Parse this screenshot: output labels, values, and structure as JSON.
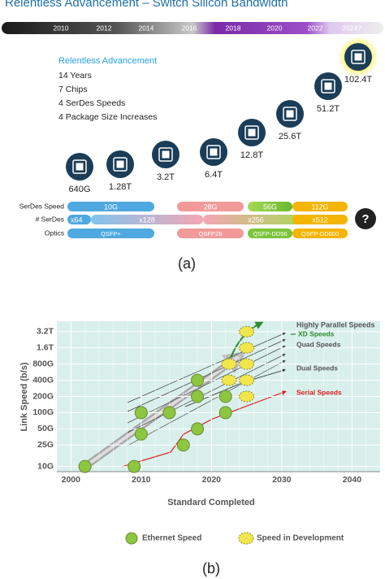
{
  "panel_a": {
    "title": "Relentless Advancement – Switch Silicon Bandwidth",
    "years": [
      "2010",
      "2012",
      "2014",
      "2016",
      "2018",
      "2020",
      "2022",
      "2024?"
    ],
    "info": {
      "heading": "Relentless Advancement",
      "lines": [
        "14 Years",
        "7 Chips",
        "4 SerDes Speeds",
        "4 Package Size Increases"
      ]
    },
    "chips": [
      "640G",
      "1.28T",
      "3.2T",
      "6.4T",
      "12.8T",
      "25.6T",
      "51.2T",
      "102.4T"
    ],
    "rows": [
      {
        "label": "SerDes Speed",
        "bars": [
          "10G",
          "28G",
          "56G",
          "112G"
        ]
      },
      {
        "label": "# SerDes",
        "bars": [
          "x64",
          "x128",
          "x256",
          "x512"
        ]
      },
      {
        "label": "Optics",
        "bars": [
          "QSFP+",
          "QSFP28",
          "QSFP-DD56",
          "QSFP-DD800"
        ]
      }
    ],
    "unknown": "?",
    "caption": "(a)"
  },
  "chart_data": {
    "type": "scatter",
    "y_label": "Link Speed (b/s)",
    "x_label": "Standard Completed",
    "xlim": [
      1998,
      2044
    ],
    "ylim": [
      8,
      5000
    ],
    "log_y": true,
    "grid": true,
    "xticks": [
      2000,
      2010,
      2020,
      2030,
      2040
    ],
    "yticks": [
      {
        "value": 10,
        "label": "10G"
      },
      {
        "value": 25,
        "label": "25G"
      },
      {
        "value": 50,
        "label": "50G"
      },
      {
        "value": 100,
        "label": "100G"
      },
      {
        "value": 200,
        "label": "200G"
      },
      {
        "value": 400,
        "label": "400G"
      },
      {
        "value": 800,
        "label": "800G"
      },
      {
        "value": 1600,
        "label": "1.6T"
      },
      {
        "value": 3200,
        "label": "3.2T"
      }
    ],
    "series": [
      {
        "name": "Ethernet Speed",
        "color": "#8dc63f",
        "x": [
          2002,
          2009,
          2010,
          2010,
          2014,
          2016,
          2018,
          2018,
          2018,
          2022,
          2022
        ],
        "values": [
          10,
          10,
          40,
          100,
          100,
          25,
          50,
          200,
          400,
          100,
          200
        ]
      },
      {
        "name": "Speed in Development",
        "color": "#f1e64b",
        "x": [
          2022.5,
          2025,
          2022.5,
          2025,
          2025,
          2025,
          2025
        ],
        "values": [
          800,
          800,
          400,
          400,
          200,
          1600,
          3200
        ]
      }
    ],
    "annotations": [
      {
        "text": "Highly Parallel Speeds",
        "color": "#555555"
      },
      {
        "text": "XD Speeds",
        "color": "#2e8b2e"
      },
      {
        "text": "Quad Speeds",
        "color": "#555555"
      },
      {
        "text": "Dual Speeds",
        "color": "#555555"
      },
      {
        "text": "Serial Speeds",
        "color": "#d62020"
      }
    ],
    "caption": "(b)"
  }
}
